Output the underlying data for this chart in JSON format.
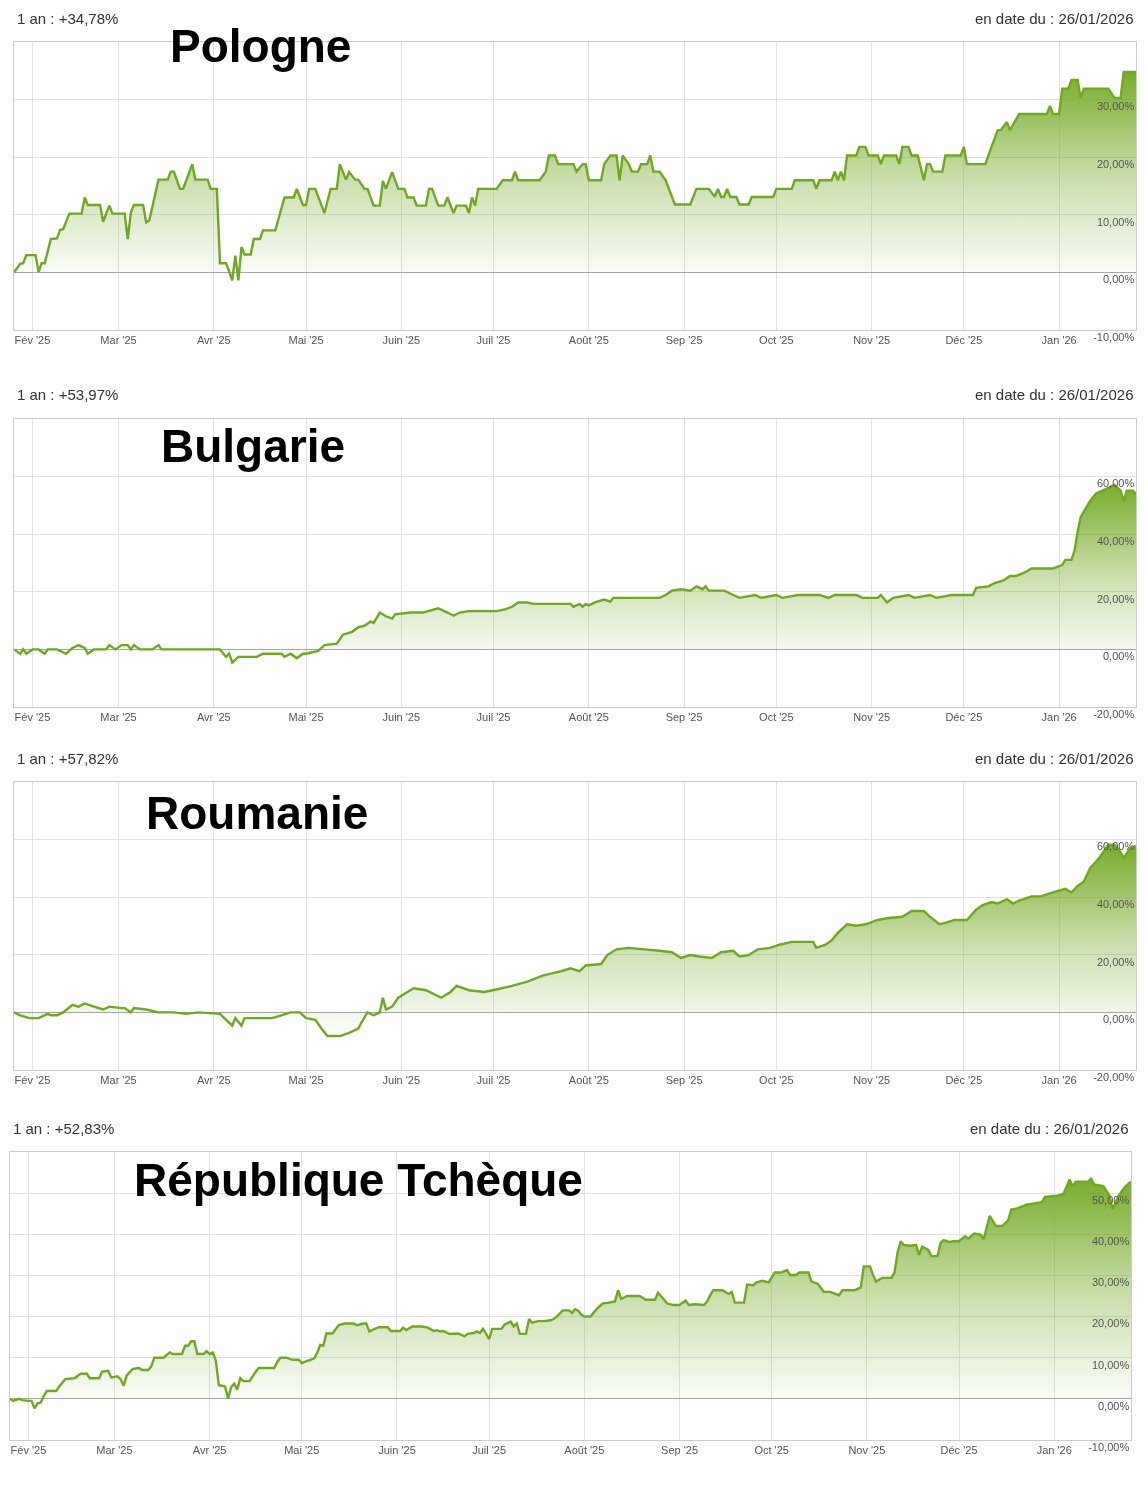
{
  "chart_data": [
    {
      "type": "area",
      "title": "Pologne",
      "annotations": [
        "1 an : +34,78%",
        "en date du : 26/01/2026"
      ],
      "series": [
        {
          "color": "#70a81f",
          "x": [
            "2025-01-26",
            "2025-01-28",
            "2025-01-29",
            "2025-01-30",
            "2025-02-02",
            "2025-02-03",
            "2025-02-04",
            "2025-02-05",
            "2025-02-07",
            "2025-02-09",
            "2025-02-10",
            "2025-02-11",
            "2025-02-13",
            "2025-02-17",
            "2025-02-18",
            "2025-02-19",
            "2025-02-23",
            "2025-02-24",
            "2025-02-26",
            "2025-02-27",
            "2025-03-03",
            "2025-03-04",
            "2025-03-05",
            "2025-03-06",
            "2025-03-09",
            "2025-03-10",
            "2025-03-11",
            "2025-03-14",
            "2025-03-17",
            "2025-03-18",
            "2025-03-19",
            "2025-03-21",
            "2025-03-22",
            "2025-03-25",
            "2025-03-26",
            "2025-03-30",
            "2025-03-31",
            "2025-04-02",
            "2025-04-03",
            "2025-04-05",
            "2025-04-07",
            "2025-04-08",
            "2025-04-09",
            "2025-04-10",
            "2025-04-11",
            "2025-04-13",
            "2025-04-14",
            "2025-04-16",
            "2025-04-17",
            "2025-04-21",
            "2025-04-24",
            "2025-04-27",
            "2025-04-28",
            "2025-04-30",
            "2025-05-01",
            "2025-05-02",
            "2025-05-04",
            "2025-05-07",
            "2025-05-09",
            "2025-05-11",
            "2025-05-12",
            "2025-05-14",
            "2025-05-15",
            "2025-05-17",
            "2025-05-18",
            "2025-05-20",
            "2025-05-21",
            "2025-05-23",
            "2025-05-25",
            "2025-05-26",
            "2025-05-27",
            "2025-05-29",
            "2025-05-31",
            "2025-06-02",
            "2025-06-03",
            "2025-06-05",
            "2025-06-06",
            "2025-06-09",
            "2025-06-10",
            "2025-06-11",
            "2025-06-13",
            "2025-06-15",
            "2025-06-16",
            "2025-06-18",
            "2025-06-19",
            "2025-06-22",
            "2025-06-23",
            "2025-06-24",
            "2025-06-25",
            "2025-06-26",
            "2025-07-02",
            "2025-07-04",
            "2025-07-07",
            "2025-07-08",
            "2025-07-09",
            "2025-07-16",
            "2025-07-18",
            "2025-07-19",
            "2025-07-21",
            "2025-07-22",
            "2025-07-27",
            "2025-07-28",
            "2025-07-30",
            "2025-07-31",
            "2025-08-01",
            "2025-08-05",
            "2025-08-06",
            "2025-08-08",
            "2025-08-10",
            "2025-08-11",
            "2025-08-12",
            "2025-08-14",
            "2025-08-15",
            "2025-08-17",
            "2025-08-18",
            "2025-08-20",
            "2025-08-21",
            "2025-08-22",
            "2025-08-24",
            "2025-08-26",
            "2025-08-29",
            "2025-09-03",
            "2025-09-05",
            "2025-09-09",
            "2025-09-11",
            "2025-09-12",
            "2025-09-13",
            "2025-09-14",
            "2025-09-15",
            "2025-09-16",
            "2025-09-18",
            "2025-09-19",
            "2025-09-22",
            "2025-09-23",
            "2025-09-30",
            "2025-10-01",
            "2025-10-06",
            "2025-10-07",
            "2025-10-13",
            "2025-10-14",
            "2025-10-15",
            "2025-10-19",
            "2025-10-20",
            "2025-10-21",
            "2025-10-22",
            "2025-10-23",
            "2025-10-24",
            "2025-10-27",
            "2025-10-28",
            "2025-10-30",
            "2025-10-31",
            "2025-11-03",
            "2025-11-04",
            "2025-11-05",
            "2025-11-09",
            "2025-11-10",
            "2025-11-11",
            "2025-11-13",
            "2025-11-14",
            "2025-11-16",
            "2025-11-18",
            "2025-11-19",
            "2025-11-20",
            "2025-11-21",
            "2025-11-24",
            "2025-11-25",
            "2025-11-30",
            "2025-12-01",
            "2025-12-02",
            "2025-12-08",
            "2025-12-10",
            "2025-12-12",
            "2025-12-13",
            "2025-12-15",
            "2025-12-16",
            "2025-12-19",
            "2025-12-28",
            "2025-12-29",
            "2025-12-30",
            "2026-01-01",
            "2026-01-02",
            "2026-01-04",
            "2026-01-05",
            "2026-01-07",
            "2026-01-08",
            "2026-01-09",
            "2026-01-17",
            "2026-01-19",
            "2026-01-21",
            "2026-01-22",
            "2026-01-26"
          ],
          "values": [
            0.0,
            1.5,
            1.6,
            3.0,
            3.0,
            0.1,
            1.6,
            1.6,
            5.8,
            5.9,
            7.4,
            7.5,
            10.2,
            10.2,
            13.0,
            11.7,
            11.7,
            8.8,
            11.6,
            10.2,
            10.2,
            5.8,
            10.3,
            11.7,
            11.7,
            8.7,
            9.0,
            16.1,
            16.1,
            17.5,
            17.5,
            14.5,
            14.5,
            18.8,
            16.1,
            16.1,
            14.5,
            14.5,
            1.6,
            1.6,
            -1.4,
            2.9,
            -1.4,
            4.4,
            3.1,
            3.1,
            5.8,
            5.8,
            7.3,
            7.3,
            13.0,
            13.0,
            14.5,
            11.7,
            11.7,
            14.5,
            14.5,
            10.3,
            14.5,
            14.5,
            18.8,
            16.1,
            17.4,
            16.1,
            16.1,
            14.5,
            14.5,
            11.6,
            11.6,
            15.9,
            14.5,
            17.4,
            14.5,
            14.5,
            13.0,
            13.0,
            11.6,
            11.6,
            14.5,
            14.5,
            11.6,
            11.6,
            13.0,
            10.3,
            11.6,
            11.6,
            10.3,
            13.0,
            11.6,
            14.5,
            14.5,
            16.0,
            16.0,
            17.5,
            16.0,
            16.0,
            17.5,
            20.3,
            20.3,
            18.8,
            18.8,
            17.5,
            18.8,
            18.8,
            16.0,
            16.0,
            18.8,
            20.3,
            20.3,
            16.0,
            20.3,
            18.8,
            17.5,
            17.5,
            18.8,
            18.8,
            20.3,
            17.5,
            17.5,
            16.0,
            11.8,
            11.8,
            14.5,
            14.5,
            13.1,
            14.5,
            13.1,
            13.1,
            14.5,
            13.1,
            13.1,
            11.8,
            11.8,
            13.1,
            13.1,
            14.5,
            14.5,
            16.0,
            16.0,
            14.5,
            16.0,
            16.0,
            17.5,
            16.0,
            17.5,
            16.0,
            20.3,
            20.3,
            21.8,
            21.8,
            20.3,
            20.3,
            18.8,
            20.3,
            20.3,
            18.8,
            21.8,
            21.8,
            20.3,
            20.3,
            16.0,
            18.8,
            18.8,
            17.5,
            17.5,
            20.3,
            20.3,
            21.8,
            18.8,
            18.8,
            21.8,
            24.7,
            24.7,
            26.1,
            24.7,
            27.5,
            27.5,
            28.9,
            27.5,
            27.5,
            31.9,
            31.9,
            33.4,
            33.4,
            30.3,
            31.9,
            31.9,
            30.3,
            30.3,
            34.8,
            34.8
          ]
        }
      ],
      "xlim": [
        "2025-01-26",
        "2026-01-26"
      ],
      "xticks": [
        {
          "value": "2025-02-01",
          "label": "Fév '25"
        },
        {
          "value": "2025-03-01",
          "label": "Mar '25"
        },
        {
          "value": "2025-04-01",
          "label": "Avr '25"
        },
        {
          "value": "2025-05-01",
          "label": "Mai '25"
        },
        {
          "value": "2025-06-01",
          "label": "Juin '25"
        },
        {
          "value": "2025-07-01",
          "label": "Juil '25"
        },
        {
          "value": "2025-08-01",
          "label": "Août '25"
        },
        {
          "value": "2025-09-01",
          "label": "Sep '25"
        },
        {
          "value": "2025-10-01",
          "label": "Oct '25"
        },
        {
          "value": "2025-11-01",
          "label": "Nov '25"
        },
        {
          "value": "2025-12-01",
          "label": "Déc '25"
        },
        {
          "value": "2026-01-01",
          "label": "Jan '26"
        }
      ],
      "ylim": [
        -10,
        40
      ],
      "yticks": [
        {
          "value": -10,
          "label": "-10,00%"
        },
        {
          "value": 0,
          "label": "0,00%"
        },
        {
          "value": 10,
          "label": "10,00%"
        },
        {
          "value": 20,
          "label": "20,00%"
        },
        {
          "value": 30,
          "label": "30,00%"
        }
      ],
      "grid": true
    },
    {
      "type": "area",
      "title": "Bulgarie",
      "annotations": [
        "1 an : +53,97%",
        "en date du : 26/01/2026"
      ],
      "series": [
        {
          "color": "#70a81f",
          "x": [
            "2025-01-26",
            "2025-01-28",
            "2025-01-29",
            "2025-01-30",
            "2025-02-01",
            "2025-02-03",
            "2025-02-05",
            "2025-02-06",
            "2025-02-09",
            "2025-02-12",
            "2025-02-14",
            "2025-02-16",
            "2025-02-18",
            "2025-02-19",
            "2025-02-21",
            "2025-02-25",
            "2025-02-26",
            "2025-02-28",
            "2025-03-02",
            "2025-03-04",
            "2025-03-05",
            "2025-03-06",
            "2025-03-08",
            "2025-03-12",
            "2025-03-14",
            "2025-03-15",
            "2025-04-03",
            "2025-04-05",
            "2025-04-06",
            "2025-04-07",
            "2025-04-09",
            "2025-04-15",
            "2025-04-17",
            "2025-04-23",
            "2025-04-24",
            "2025-04-26",
            "2025-04-28",
            "2025-04-30",
            "2025-05-01",
            "2025-05-05",
            "2025-05-07",
            "2025-05-11",
            "2025-05-13",
            "2025-05-16",
            "2025-05-18",
            "2025-05-20",
            "2025-05-22",
            "2025-05-23",
            "2025-05-25",
            "2025-05-27",
            "2025-05-29",
            "2025-05-30",
            "2025-06-04",
            "2025-06-08",
            "2025-06-13",
            "2025-06-16",
            "2025-06-18",
            "2025-06-20",
            "2025-06-23",
            "2025-07-02",
            "2025-07-05",
            "2025-07-07",
            "2025-07-09",
            "2025-07-12",
            "2025-07-14",
            "2025-07-26",
            "2025-07-27",
            "2025-07-29",
            "2025-07-30",
            "2025-07-31",
            "2025-08-01",
            "2025-08-03",
            "2025-08-06",
            "2025-08-08",
            "2025-08-09",
            "2025-08-24",
            "2025-08-26",
            "2025-08-28",
            "2025-08-31",
            "2025-09-03",
            "2025-09-05",
            "2025-09-07",
            "2025-09-08",
            "2025-09-09",
            "2025-09-14",
            "2025-09-17",
            "2025-09-19",
            "2025-09-24",
            "2025-09-26",
            "2025-10-01",
            "2025-10-03",
            "2025-10-08",
            "2025-10-15",
            "2025-10-18",
            "2025-10-20",
            "2025-10-27",
            "2025-10-29",
            "2025-11-03",
            "2025-11-04",
            "2025-11-06",
            "2025-11-08",
            "2025-11-13",
            "2025-11-15",
            "2025-11-20",
            "2025-11-22",
            "2025-11-27",
            "2025-12-04",
            "2025-12-05",
            "2025-12-09",
            "2025-12-11",
            "2025-12-14",
            "2025-12-16",
            "2025-12-18",
            "2025-12-21",
            "2025-12-23",
            "2025-12-30",
            "2026-01-02",
            "2026-01-03",
            "2026-01-05",
            "2026-01-06",
            "2026-01-07",
            "2026-01-08",
            "2026-01-11",
            "2026-01-13",
            "2026-01-16",
            "2026-01-18",
            "2026-01-19",
            "2026-01-21",
            "2026-01-22",
            "2026-01-23",
            "2026-01-25",
            "2026-01-26"
          ],
          "values": [
            0.0,
            -1.5,
            0.0,
            -1.5,
            0.0,
            0.0,
            -1.5,
            0.0,
            0.0,
            -1.5,
            0.5,
            1.5,
            0.5,
            -1.5,
            0.0,
            0.0,
            1.5,
            0.0,
            1.5,
            1.5,
            0.0,
            1.5,
            0.0,
            0.0,
            1.5,
            0.0,
            0.0,
            -2.6,
            -1.5,
            -4.6,
            -2.6,
            -2.6,
            -1.5,
            -1.5,
            -2.6,
            -1.5,
            -3.1,
            -1.5,
            -1.5,
            -0.5,
            1.5,
            2.0,
            5.1,
            6.1,
            7.7,
            8.2,
            9.7,
            9.2,
            12.8,
            11.5,
            10.7,
            12.2,
            12.8,
            12.8,
            14.3,
            12.8,
            11.7,
            12.8,
            13.3,
            13.3,
            14.0,
            14.8,
            16.3,
            16.3,
            15.8,
            15.8,
            14.8,
            15.8,
            14.8,
            15.8,
            15.3,
            16.3,
            17.3,
            16.6,
            17.9,
            17.9,
            18.9,
            20.4,
            20.9,
            20.4,
            21.9,
            20.9,
            21.9,
            20.4,
            20.4,
            18.9,
            17.9,
            18.9,
            17.9,
            18.9,
            17.9,
            18.9,
            18.9,
            17.9,
            18.9,
            18.9,
            17.9,
            17.9,
            18.9,
            16.3,
            17.9,
            18.9,
            17.9,
            18.9,
            17.9,
            18.9,
            18.9,
            21.4,
            21.9,
            23.0,
            24.0,
            25.5,
            25.5,
            26.8,
            28.1,
            28.1,
            29.3,
            31.1,
            31.1,
            34.2,
            40.8,
            45.9,
            51.5,
            54.1,
            55.6,
            56.6,
            57.1,
            55.1,
            51.5,
            55.1,
            55.1,
            54.0
          ]
        }
      ],
      "xlim": [
        "2025-01-26",
        "2026-01-26"
      ],
      "xticks": [
        {
          "value": "2025-02-01",
          "label": "Fév '25"
        },
        {
          "value": "2025-03-01",
          "label": "Mar '25"
        },
        {
          "value": "2025-04-01",
          "label": "Avr '25"
        },
        {
          "value": "2025-05-01",
          "label": "Mai '25"
        },
        {
          "value": "2025-06-01",
          "label": "Juin '25"
        },
        {
          "value": "2025-07-01",
          "label": "Juil '25"
        },
        {
          "value": "2025-08-01",
          "label": "Août '25"
        },
        {
          "value": "2025-09-01",
          "label": "Sep '25"
        },
        {
          "value": "2025-10-01",
          "label": "Oct '25"
        },
        {
          "value": "2025-11-01",
          "label": "Nov '25"
        },
        {
          "value": "2025-12-01",
          "label": "Déc '25"
        },
        {
          "value": "2026-01-01",
          "label": "Jan '26"
        }
      ],
      "ylim": [
        -20,
        80
      ],
      "yticks": [
        {
          "value": -20,
          "label": "-20,00%"
        },
        {
          "value": 0,
          "label": "0,00%"
        },
        {
          "value": 20,
          "label": "20,00%"
        },
        {
          "value": 40,
          "label": "40,00%"
        },
        {
          "value": 60,
          "label": "60,00%"
        }
      ],
      "grid": true
    },
    {
      "type": "area",
      "title": "Roumanie",
      "annotations": [
        "1 an : +57,82%",
        "en date du : 26/01/2026"
      ],
      "series": [
        {
          "color": "#70a81f",
          "x": [
            "2025-01-26",
            "2025-01-28",
            "2025-01-31",
            "2025-02-03",
            "2025-02-06",
            "2025-02-07",
            "2025-02-09",
            "2025-02-11",
            "2025-02-14",
            "2025-02-16",
            "2025-02-18",
            "2025-02-21",
            "2025-02-24",
            "2025-02-26",
            "2025-03-02",
            "2025-03-03",
            "2025-03-05",
            "2025-03-06",
            "2025-03-10",
            "2025-03-14",
            "2025-03-19",
            "2025-03-23",
            "2025-03-27",
            "2025-04-03",
            "2025-04-05",
            "2025-04-07",
            "2025-04-08",
            "2025-04-10",
            "2025-04-11",
            "2025-04-20",
            "2025-04-23",
            "2025-04-26",
            "2025-04-29",
            "2025-05-01",
            "2025-05-04",
            "2025-05-06",
            "2025-05-08",
            "2025-05-12",
            "2025-05-15",
            "2025-05-18",
            "2025-05-19",
            "2025-05-21",
            "2025-05-23",
            "2025-05-25",
            "2025-05-26",
            "2025-05-27",
            "2025-05-29",
            "2025-05-31",
            "2025-06-03",
            "2025-06-05",
            "2025-06-09",
            "2025-06-14",
            "2025-06-17",
            "2025-06-19",
            "2025-06-23",
            "2025-06-28",
            "2025-07-03",
            "2025-07-07",
            "2025-07-12",
            "2025-07-17",
            "2025-07-21",
            "2025-07-23",
            "2025-07-26",
            "2025-07-29",
            "2025-07-31",
            "2025-08-05",
            "2025-08-07",
            "2025-08-10",
            "2025-08-14",
            "2025-08-19",
            "2025-08-24",
            "2025-08-28",
            "2025-08-31",
            "2025-09-03",
            "2025-09-06",
            "2025-09-10",
            "2025-09-13",
            "2025-09-17",
            "2025-09-19",
            "2025-09-22",
            "2025-09-25",
            "2025-09-29",
            "2025-10-02",
            "2025-10-06",
            "2025-10-13",
            "2025-10-14",
            "2025-10-17",
            "2025-10-19",
            "2025-10-21",
            "2025-10-24",
            "2025-10-27",
            "2025-10-30",
            "2025-11-03",
            "2025-11-06",
            "2025-11-11",
            "2025-11-14",
            "2025-11-18",
            "2025-11-20",
            "2025-11-23",
            "2025-11-25",
            "2025-11-28",
            "2025-12-02",
            "2025-12-05",
            "2025-12-07",
            "2025-12-10",
            "2025-12-12",
            "2025-12-15",
            "2025-12-17",
            "2025-12-19",
            "2025-12-23",
            "2025-12-26",
            "2025-12-29",
            "2026-01-01",
            "2026-01-03",
            "2026-01-05",
            "2026-01-07",
            "2026-01-09",
            "2026-01-11",
            "2026-01-14",
            "2026-01-17",
            "2026-01-19",
            "2026-01-21",
            "2026-01-22",
            "2026-01-24",
            "2026-01-26"
          ],
          "values": [
            0.0,
            -1.0,
            -2.0,
            -2.0,
            -0.5,
            -1.0,
            -1.0,
            0.0,
            2.6,
            2.0,
            3.1,
            2.0,
            1.0,
            2.0,
            1.5,
            1.5,
            0.0,
            1.5,
            1.0,
            0.0,
            0.0,
            -0.5,
            0.0,
            -0.5,
            -2.6,
            -4.6,
            -2.0,
            -4.6,
            -2.0,
            -2.0,
            -1.0,
            0.0,
            0.0,
            -2.0,
            -2.6,
            -5.6,
            -8.2,
            -8.2,
            -7.1,
            -5.6,
            -3.6,
            0.0,
            -1.0,
            0.0,
            5.1,
            1.0,
            2.0,
            5.1,
            7.1,
            8.4,
            7.7,
            5.1,
            7.1,
            9.2,
            7.7,
            7.1,
            8.2,
            9.2,
            10.7,
            12.8,
            13.8,
            14.3,
            15.3,
            14.3,
            16.3,
            16.8,
            19.9,
            21.9,
            22.4,
            21.9,
            21.4,
            20.9,
            18.9,
            19.9,
            19.4,
            18.9,
            20.9,
            21.4,
            19.4,
            19.9,
            21.9,
            22.4,
            23.5,
            24.5,
            24.5,
            22.4,
            23.5,
            25.0,
            27.6,
            30.6,
            30.1,
            30.6,
            32.1,
            32.7,
            33.2,
            35.2,
            35.2,
            33.2,
            30.6,
            31.1,
            32.1,
            32.1,
            35.7,
            37.2,
            38.3,
            37.8,
            39.3,
            37.8,
            38.8,
            40.3,
            40.3,
            41.3,
            42.3,
            42.9,
            41.6,
            43.9,
            45.4,
            50.0,
            53.6,
            58.2,
            58.2,
            55.6,
            53.6,
            56.9,
            57.8
          ]
        }
      ],
      "xlim": [
        "2025-01-26",
        "2026-01-26"
      ],
      "xticks": [
        {
          "value": "2025-02-01",
          "label": "Fév '25"
        },
        {
          "value": "2025-03-01",
          "label": "Mar '25"
        },
        {
          "value": "2025-04-01",
          "label": "Avr '25"
        },
        {
          "value": "2025-05-01",
          "label": "Mai '25"
        },
        {
          "value": "2025-06-01",
          "label": "Juin '25"
        },
        {
          "value": "2025-07-01",
          "label": "Juil '25"
        },
        {
          "value": "2025-08-01",
          "label": "Août '25"
        },
        {
          "value": "2025-09-01",
          "label": "Sep '25"
        },
        {
          "value": "2025-10-01",
          "label": "Oct '25"
        },
        {
          "value": "2025-11-01",
          "label": "Nov '25"
        },
        {
          "value": "2025-12-01",
          "label": "Déc '25"
        },
        {
          "value": "2026-01-01",
          "label": "Jan '26"
        }
      ],
      "ylim": [
        -20,
        80
      ],
      "yticks": [
        {
          "value": -20,
          "label": "-20,00%"
        },
        {
          "value": 0,
          "label": "0,00%"
        },
        {
          "value": 20,
          "label": "20,00%"
        },
        {
          "value": 40,
          "label": "40,00%"
        },
        {
          "value": 60,
          "label": "60,00%"
        }
      ],
      "grid": true
    },
    {
      "type": "area",
      "title": "République Tchèque",
      "annotations": [
        "1 an : +52,83%",
        "en date du : 26/01/2026"
      ],
      "series": [
        {
          "color": "#70a81f",
          "x": [
            "2025-01-26",
            "2025-01-27",
            "2025-01-29",
            "2025-01-30",
            "2025-02-01",
            "2025-02-02",
            "2025-02-03",
            "2025-02-04",
            "2025-02-05",
            "2025-02-06",
            "2025-02-07",
            "2025-02-10",
            "2025-02-11",
            "2025-02-13",
            "2025-02-16",
            "2025-02-18",
            "2025-02-20",
            "2025-02-21",
            "2025-02-24",
            "2025-02-25",
            "2025-02-27",
            "2025-02-28",
            "2025-03-02",
            "2025-03-03",
            "2025-03-04",
            "2025-03-05",
            "2025-03-07",
            "2025-03-09",
            "2025-03-10",
            "2025-03-12",
            "2025-03-13",
            "2025-03-14",
            "2025-03-17",
            "2025-03-19",
            "2025-03-20",
            "2025-03-23",
            "2025-03-24",
            "2025-03-25",
            "2025-03-26",
            "2025-03-27",
            "2025-03-28",
            "2025-03-30",
            "2025-03-31",
            "2025-04-01",
            "2025-04-02",
            "2025-04-03",
            "2025-04-04",
            "2025-04-05",
            "2025-04-06",
            "2025-04-07",
            "2025-04-08",
            "2025-04-09",
            "2025-04-10",
            "2025-04-11",
            "2025-04-12",
            "2025-04-14",
            "2025-04-16",
            "2025-04-17",
            "2025-04-22",
            "2025-04-23",
            "2025-04-24",
            "2025-04-26",
            "2025-04-28",
            "2025-04-30",
            "2025-05-01",
            "2025-05-03",
            "2025-05-05",
            "2025-05-06",
            "2025-05-07",
            "2025-05-08",
            "2025-05-09",
            "2025-05-11",
            "2025-05-13",
            "2025-05-15",
            "2025-05-18",
            "2025-05-19",
            "2025-05-21",
            "2025-05-22",
            "2025-05-23",
            "2025-05-26",
            "2025-05-29",
            "2025-05-30",
            "2025-06-02",
            "2025-06-03",
            "2025-06-04",
            "2025-06-06",
            "2025-06-09",
            "2025-06-11",
            "2025-06-13",
            "2025-06-14",
            "2025-06-15",
            "2025-06-16",
            "2025-06-18",
            "2025-06-21",
            "2025-06-23",
            "2025-06-24",
            "2025-06-26",
            "2025-06-27",
            "2025-06-28",
            "2025-06-29",
            "2025-06-30",
            "2025-07-01",
            "2025-07-02",
            "2025-07-05",
            "2025-07-06",
            "2025-07-08",
            "2025-07-09",
            "2025-07-10",
            "2025-07-11",
            "2025-07-13",
            "2025-07-14",
            "2025-07-15",
            "2025-07-17",
            "2025-07-19",
            "2025-07-21",
            "2025-07-22",
            "2025-07-23",
            "2025-07-25",
            "2025-07-27",
            "2025-07-28",
            "2025-07-29",
            "2025-07-30",
            "2025-07-31",
            "2025-08-01",
            "2025-08-03",
            "2025-08-05",
            "2025-08-07",
            "2025-08-09",
            "2025-08-11",
            "2025-08-12",
            "2025-08-13",
            "2025-08-15",
            "2025-08-19",
            "2025-08-21",
            "2025-08-24",
            "2025-08-25",
            "2025-08-27",
            "2025-08-28",
            "2025-08-30",
            "2025-09-01",
            "2025-09-03",
            "2025-09-04",
            "2025-09-06",
            "2025-09-09",
            "2025-09-10",
            "2025-09-11",
            "2025-09-12",
            "2025-09-15",
            "2025-09-17",
            "2025-09-18",
            "2025-09-19",
            "2025-09-22",
            "2025-09-23",
            "2025-09-25",
            "2025-09-26",
            "2025-09-28",
            "2025-09-30",
            "2025-10-02",
            "2025-10-04",
            "2025-10-06",
            "2025-10-07",
            "2025-10-09",
            "2025-10-10",
            "2025-10-13",
            "2025-10-14",
            "2025-10-16",
            "2025-10-18",
            "2025-10-20",
            "2025-10-23",
            "2025-10-24",
            "2025-10-28",
            "2025-10-30",
            "2025-10-31",
            "2025-11-02",
            "2025-11-03",
            "2025-11-04",
            "2025-11-06",
            "2025-11-09",
            "2025-11-10",
            "2025-11-11",
            "2025-11-12",
            "2025-11-13",
            "2025-11-15",
            "2025-11-17",
            "2025-11-18",
            "2025-11-19",
            "2025-11-21",
            "2025-11-22",
            "2025-11-24",
            "2025-11-25",
            "2025-11-26",
            "2025-11-28",
            "2025-11-29",
            "2025-12-01",
            "2025-12-03",
            "2025-12-04",
            "2025-12-06",
            "2025-12-08",
            "2025-12-09",
            "2025-12-11",
            "2025-12-13",
            "2025-12-15",
            "2025-12-17",
            "2025-12-18",
            "2025-12-20",
            "2025-12-23",
            "2025-12-28",
            "2025-12-29",
            "2026-01-02",
            "2026-01-04",
            "2026-01-06",
            "2026-01-07",
            "2026-01-08",
            "2026-01-12",
            "2026-01-13",
            "2026-01-14",
            "2026-01-17",
            "2026-01-19",
            "2026-01-20",
            "2026-01-22",
            "2026-01-24",
            "2026-01-26"
          ],
          "values": [
            0.0,
            -0.5,
            0.0,
            -0.3,
            -0.5,
            -0.5,
            -2.3,
            -1.1,
            -0.9,
            0.7,
            1.9,
            1.9,
            3.0,
            4.8,
            5.0,
            6.1,
            6.1,
            5.0,
            5.0,
            6.6,
            6.8,
            5.2,
            5.5,
            4.8,
            3.2,
            5.7,
            7.3,
            7.5,
            7.0,
            7.0,
            7.9,
            10.0,
            10.0,
            11.3,
            10.9,
            10.9,
            12.9,
            12.9,
            14.0,
            14.0,
            10.9,
            10.9,
            11.6,
            10.9,
            11.3,
            9.3,
            3.3,
            3.2,
            3.0,
            0.1,
            2.8,
            3.7,
            2.3,
            5.0,
            4.3,
            4.3,
            6.6,
            7.5,
            7.5,
            8.9,
            10.0,
            10.0,
            9.5,
            9.5,
            8.7,
            9.3,
            9.8,
            11.1,
            13.1,
            12.9,
            15.9,
            15.9,
            17.9,
            18.3,
            18.3,
            17.9,
            18.3,
            18.3,
            16.4,
            17.4,
            17.4,
            16.5,
            16.5,
            17.3,
            16.7,
            17.6,
            17.6,
            17.3,
            16.5,
            16.7,
            16.4,
            16.5,
            15.8,
            15.9,
            15.2,
            15.8,
            16.0,
            16.4,
            16.0,
            17.0,
            15.8,
            14.5,
            17.0,
            17.0,
            18.0,
            18.8,
            17.6,
            18.3,
            15.8,
            15.8,
            19.4,
            18.5,
            18.9,
            18.9,
            19.1,
            19.4,
            20.0,
            21.5,
            21.5,
            20.9,
            21.8,
            21.4,
            20.5,
            20.0,
            20.0,
            21.8,
            23.2,
            23.4,
            23.7,
            26.4,
            24.3,
            25.0,
            25.0,
            24.1,
            24.1,
            25.8,
            24.1,
            23.2,
            22.8,
            22.8,
            23.9,
            22.8,
            23.0,
            22.8,
            23.7,
            25.2,
            26.4,
            26.4,
            25.5,
            26.0,
            23.4,
            23.4,
            27.8,
            27.6,
            28.3,
            28.7,
            28.3,
            30.7,
            30.7,
            31.3,
            30.1,
            30.1,
            30.7,
            30.7,
            28.5,
            28.0,
            26.0,
            26.0,
            25.2,
            26.4,
            26.4,
            27.1,
            32.2,
            32.2,
            30.1,
            28.5,
            29.4,
            29.4,
            30.7,
            35.6,
            38.3,
            37.4,
            37.2,
            37.4,
            35.0,
            37.0,
            36.2,
            34.7,
            34.7,
            37.9,
            38.6,
            38.1,
            38.3,
            38.3,
            39.5,
            39.0,
            40.2,
            39.9,
            38.8,
            44.5,
            42.0,
            42.0,
            43.4,
            46.0,
            46.3,
            47.2,
            47.8,
            49.1,
            49.4,
            49.8,
            53.3,
            51.7,
            52.8,
            52.8,
            53.5,
            52.1,
            51.7,
            49.4,
            46.1,
            49.4,
            51.5,
            52.8
          ]
        }
      ],
      "xlim": [
        "2025-01-26",
        "2026-01-26"
      ],
      "xticks": [
        {
          "value": "2025-02-01",
          "label": "Fév '25"
        },
        {
          "value": "2025-03-01",
          "label": "Mar '25"
        },
        {
          "value": "2025-04-01",
          "label": "Avr '25"
        },
        {
          "value": "2025-05-01",
          "label": "Mai '25"
        },
        {
          "value": "2025-06-01",
          "label": "Juin '25"
        },
        {
          "value": "2025-07-01",
          "label": "Juil '25"
        },
        {
          "value": "2025-08-01",
          "label": "Août '25"
        },
        {
          "value": "2025-09-01",
          "label": "Sep '25"
        },
        {
          "value": "2025-10-01",
          "label": "Oct '25"
        },
        {
          "value": "2025-11-01",
          "label": "Nov '25"
        },
        {
          "value": "2025-12-01",
          "label": "Déc '25"
        },
        {
          "value": "2026-01-01",
          "label": "Jan '26"
        }
      ],
      "ylim": [
        -10,
        60
      ],
      "yticks": [
        {
          "value": -10,
          "label": "-10,00%"
        },
        {
          "value": 0,
          "label": "0,00%"
        },
        {
          "value": 10,
          "label": "10,00%"
        },
        {
          "value": 20,
          "label": "20,00%"
        },
        {
          "value": 30,
          "label": "30,00%"
        },
        {
          "value": 40,
          "label": "40,00%"
        },
        {
          "value": 50,
          "label": "50,00%"
        }
      ],
      "grid": true
    }
  ]
}
